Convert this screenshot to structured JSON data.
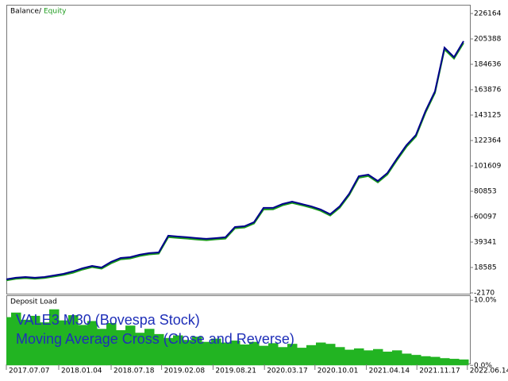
{
  "chart_data": [
    {
      "type": "line",
      "legend": [
        "Balance",
        "/",
        "Equity"
      ],
      "annotations": [
        "VALE3 M30 (Bovespa Stock)",
        "Moving Average Cross (Close and Reverse)"
      ],
      "xlim": [
        0,
        48.5
      ],
      "xticks": [
        {
          "value": 0,
          "label": "2017.07.07"
        },
        {
          "value": 5.5,
          "label": "2018.01.04"
        },
        {
          "value": 11,
          "label": "2018.07.18"
        },
        {
          "value": 16.3,
          "label": "2019.02.08"
        },
        {
          "value": 21.7,
          "label": "2019.08.21"
        },
        {
          "value": 27.1,
          "label": "2020.03.17"
        },
        {
          "value": 32.4,
          "label": "2020.10.01"
        },
        {
          "value": 37.8,
          "label": "2021.04.14"
        },
        {
          "value": 43.1,
          "label": "2021.11.17"
        },
        {
          "value": 48.4,
          "label": "2022.06.14"
        }
      ],
      "ylim": [
        -2170,
        232000
      ],
      "yticks": [
        -2170,
        18585,
        39341,
        60097,
        80853,
        101609,
        122364,
        143125,
        163876,
        184636,
        205388,
        226164
      ],
      "series": [
        {
          "name": "Equity",
          "color": "#1a9a1a",
          "values": [
            8000,
            9300,
            9900,
            9300,
            10000,
            11200,
            12500,
            14300,
            16900,
            18900,
            17600,
            22000,
            25300,
            26000,
            28000,
            29300,
            29900,
            43400,
            42800,
            42200,
            41500,
            40900,
            41600,
            42200,
            50600,
            51300,
            54500,
            66000,
            66100,
            69400,
            71300,
            69500,
            67500,
            64900,
            61000,
            67400,
            77800,
            91900,
            93300,
            88200,
            94600,
            106200,
            117200,
            125600,
            145000,
            161300,
            196800,
            189300,
            202000
          ]
        },
        {
          "name": "Balance",
          "color": "#00008b",
          "values": [
            8900,
            10200,
            10800,
            10200,
            10800,
            12100,
            13400,
            15400,
            18000,
            19900,
            18600,
            23200,
            26400,
            27000,
            29000,
            30300,
            30900,
            44600,
            43900,
            43300,
            42600,
            42000,
            42600,
            43300,
            51700,
            52300,
            55600,
            67300,
            67300,
            70500,
            72400,
            70500,
            68600,
            66000,
            62100,
            68600,
            78900,
            93200,
            94500,
            89300,
            95800,
            107500,
            118500,
            126900,
            146400,
            162600,
            198300,
            190500,
            203500
          ]
        }
      ]
    },
    {
      "type": "area",
      "title": "Deposit Load",
      "color": "#22b422",
      "ylim": [
        -0.7,
        11
      ],
      "yticks": [
        {
          "value": 10,
          "label": "10.0%"
        },
        {
          "value": 0,
          "label": "0.0%"
        }
      ],
      "values": [
        7.4,
        8.1,
        7.0,
        7.6,
        6.6,
        8.6,
        6.9,
        7.7,
        6.2,
        6.8,
        5.6,
        6.5,
        5.4,
        6.1,
        5.0,
        5.6,
        4.8,
        4.2,
        4.6,
        3.9,
        4.4,
        3.6,
        4.1,
        3.5,
        3.8,
        3.2,
        3.6,
        3.0,
        3.4,
        2.8,
        3.3,
        2.7,
        3.1,
        3.5,
        3.3,
        2.8,
        2.4,
        2.6,
        2.3,
        2.5,
        2.1,
        2.3,
        1.8,
        1.6,
        1.4,
        1.3,
        1.1,
        1.0,
        0.9
      ]
    }
  ]
}
